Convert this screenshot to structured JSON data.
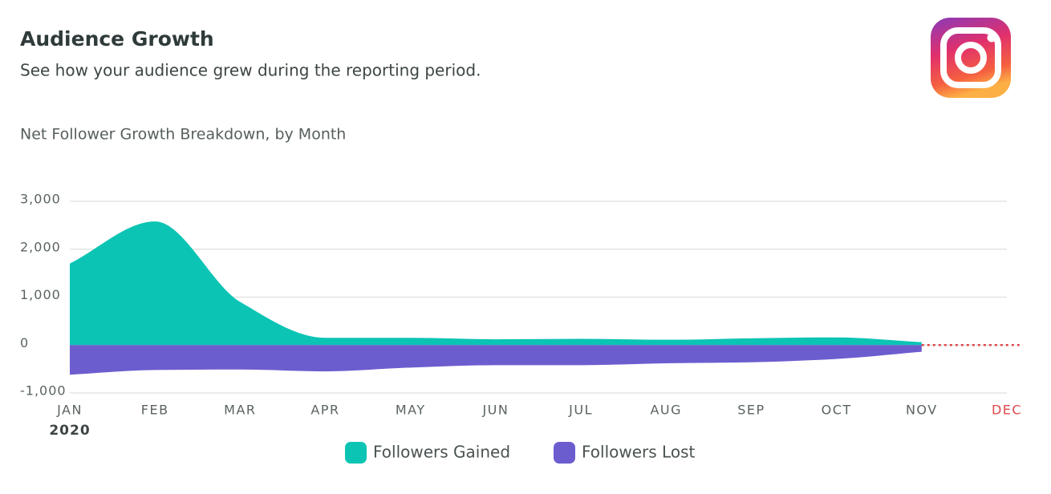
{
  "header": {
    "title": "Audience Growth",
    "subtitle": "See how your audience grew during the reporting period."
  },
  "chart_data": {
    "type": "area",
    "title": "Net Follower Growth Breakdown, by Month",
    "categories": [
      "JAN",
      "FEB",
      "MAR",
      "APR",
      "MAY",
      "JUN",
      "JUL",
      "AUG",
      "SEP",
      "OCT",
      "NOV",
      "DEC"
    ],
    "year": "2020",
    "series": [
      {
        "name": "Followers Gained",
        "color": "#0bc4b4",
        "values": [
          1700,
          2580,
          900,
          150,
          150,
          120,
          130,
          110,
          140,
          160,
          60,
          null
        ]
      },
      {
        "name": "Followers Lost",
        "color": "#6c5dcf",
        "values": [
          -620,
          -520,
          -510,
          -550,
          -470,
          -420,
          -420,
          -380,
          -360,
          -290,
          -140,
          null
        ]
      }
    ],
    "ylim": [
      -1000,
      3000
    ],
    "yticks": [
      {
        "value": 3000,
        "label": "3,000"
      },
      {
        "value": 2000,
        "label": "2,000"
      },
      {
        "value": 1000,
        "label": "1,000"
      },
      0,
      {
        "value": -1000,
        "label": "-1,000"
      }
    ],
    "grid": true,
    "legend": "bottom",
    "projection_color": "#e0474c"
  }
}
